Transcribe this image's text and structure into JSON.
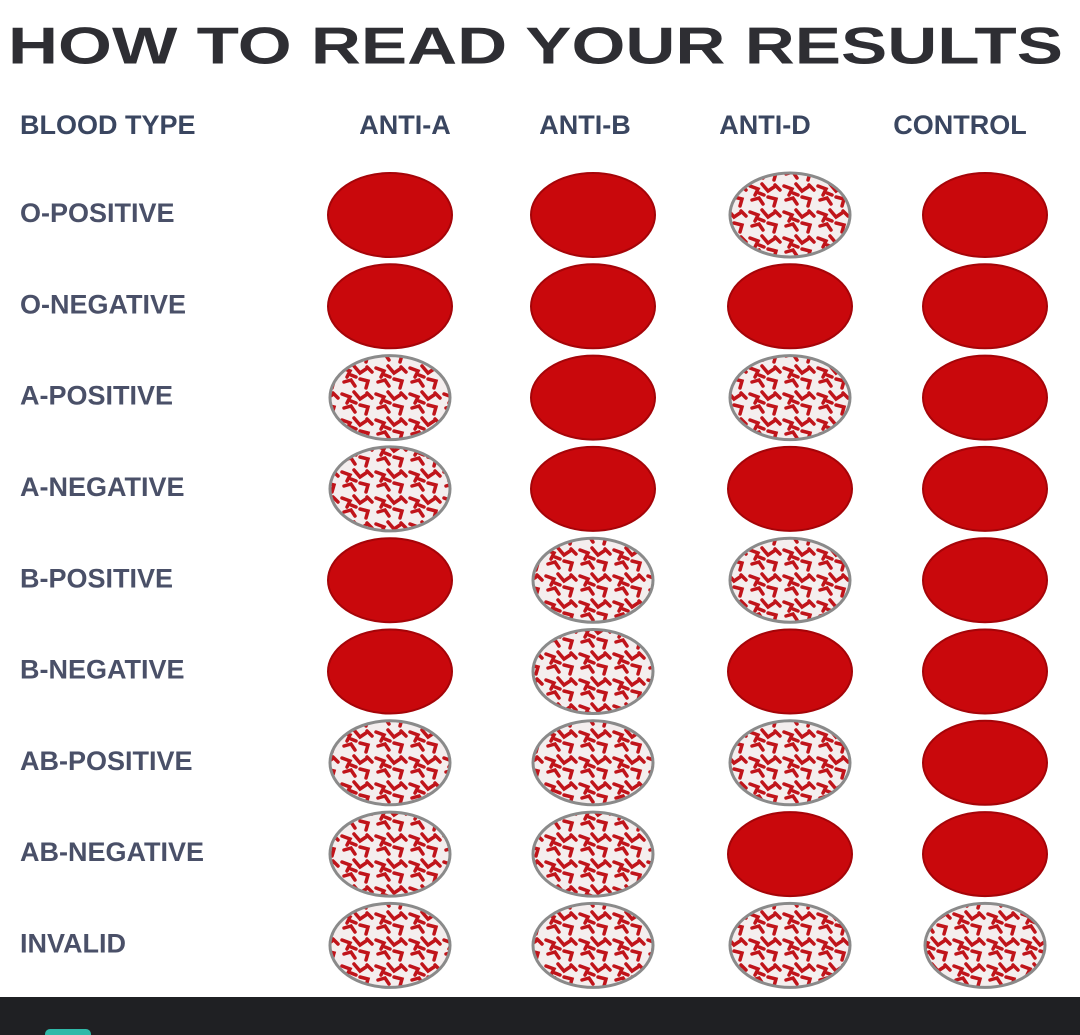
{
  "title": "HOW TO READ YOUR RESULTS",
  "table": {
    "headers": [
      "BLOOD TYPE",
      "ANTI-A",
      "ANTI-B",
      "ANTI-D",
      "CONTROL"
    ],
    "rows": [
      {
        "label": "O-POSITIVE",
        "clumped": [
          false,
          false,
          true,
          false
        ]
      },
      {
        "label": "O-NEGATIVE",
        "clumped": [
          false,
          false,
          false,
          false
        ]
      },
      {
        "label": "A-POSITIVE",
        "clumped": [
          true,
          false,
          true,
          false
        ]
      },
      {
        "label": "A-NEGATIVE",
        "clumped": [
          true,
          false,
          false,
          false
        ]
      },
      {
        "label": "B-POSITIVE",
        "clumped": [
          false,
          true,
          true,
          false
        ]
      },
      {
        "label": "B-NEGATIVE",
        "clumped": [
          false,
          true,
          false,
          false
        ]
      },
      {
        "label": "AB-POSITIVE",
        "clumped": [
          true,
          true,
          true,
          false
        ]
      },
      {
        "label": "AB-NEGATIVE",
        "clumped": [
          true,
          true,
          false,
          false
        ]
      },
      {
        "label": "INVALID",
        "clumped": [
          true,
          true,
          true,
          true
        ]
      }
    ]
  }
}
